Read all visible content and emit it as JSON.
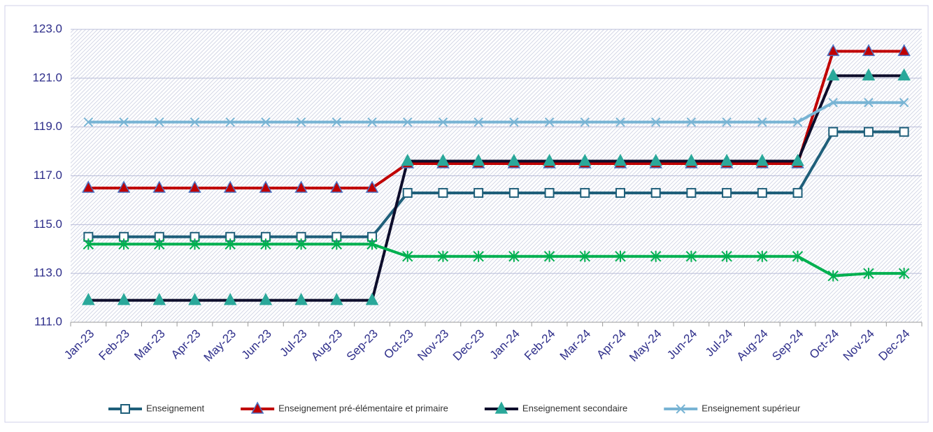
{
  "chart_data": {
    "type": "line",
    "categories": [
      "Jan-23",
      "Feb-23",
      "Mar-23",
      "Apr-23",
      "May-23",
      "Jun-23",
      "Jul-23",
      "Aug-23",
      "Sep-23",
      "Oct-23",
      "Nov-23",
      "Dec-23",
      "Jan-24",
      "Feb-24",
      "Mar-24",
      "Apr-24",
      "May-24",
      "Jun-24",
      "Jul-24",
      "Aug-24",
      "Sep-24",
      "Oct-24",
      "Nov-24",
      "Dec-24"
    ],
    "series": [
      {
        "name": "Enseignement",
        "color": "#1f5f7a",
        "marker": "square",
        "marker_fill": "#ffffff",
        "values": [
          114.5,
          114.5,
          114.5,
          114.5,
          114.5,
          114.5,
          114.5,
          114.5,
          114.5,
          116.3,
          116.3,
          116.3,
          116.3,
          116.3,
          116.3,
          116.3,
          116.3,
          116.3,
          116.3,
          116.3,
          116.3,
          118.8,
          118.8,
          118.8
        ]
      },
      {
        "name": "Enseignement pré-élémentaire et primaire",
        "color": "#c00000",
        "marker": "triangle",
        "marker_fill": "#c00000",
        "marker_edge": "#4a72c4",
        "values": [
          116.5,
          116.5,
          116.5,
          116.5,
          116.5,
          116.5,
          116.5,
          116.5,
          116.5,
          117.5,
          117.5,
          117.5,
          117.5,
          117.5,
          117.5,
          117.5,
          117.5,
          117.5,
          117.5,
          117.5,
          117.5,
          122.1,
          122.1,
          122.1
        ]
      },
      {
        "name": "Enseignement secondaire",
        "color": "#0d0d2b",
        "marker": "triangle",
        "marker_fill": "#2aa89a",
        "marker_edge": "#2aa89a",
        "values": [
          111.9,
          111.9,
          111.9,
          111.9,
          111.9,
          111.9,
          111.9,
          111.9,
          111.9,
          117.6,
          117.6,
          117.6,
          117.6,
          117.6,
          117.6,
          117.6,
          117.6,
          117.6,
          117.6,
          117.6,
          117.6,
          121.1,
          121.1,
          121.1
        ]
      },
      {
        "name": "Enseignement supérieur",
        "color": "#78b4d4",
        "marker": "x",
        "values": [
          119.2,
          119.2,
          119.2,
          119.2,
          119.2,
          119.2,
          119.2,
          119.2,
          119.2,
          119.2,
          119.2,
          119.2,
          119.2,
          119.2,
          119.2,
          119.2,
          119.2,
          119.2,
          119.2,
          119.2,
          119.2,
          120.0,
          120.0,
          120.0
        ]
      },
      {
        "color": "#00b050",
        "marker": "star",
        "values": [
          114.2,
          114.2,
          114.2,
          114.2,
          114.2,
          114.2,
          114.2,
          114.2,
          114.2,
          113.7,
          113.7,
          113.7,
          113.7,
          113.7,
          113.7,
          113.7,
          113.7,
          113.7,
          113.7,
          113.7,
          113.7,
          112.9,
          113.0,
          113.0
        ]
      }
    ],
    "ylim": [
      111,
      123
    ],
    "yticks": [
      {
        "value": 111,
        "label": "111.0"
      },
      {
        "value": 113,
        "label": "113.0"
      },
      {
        "value": 115,
        "label": "115.0"
      },
      {
        "value": 117,
        "label": "117.0"
      },
      {
        "value": 119,
        "label": "119.0"
      },
      {
        "value": 121,
        "label": "121.0"
      },
      {
        "value": 123,
        "label": "123.0"
      }
    ],
    "grid": true,
    "legend": "bottom"
  }
}
